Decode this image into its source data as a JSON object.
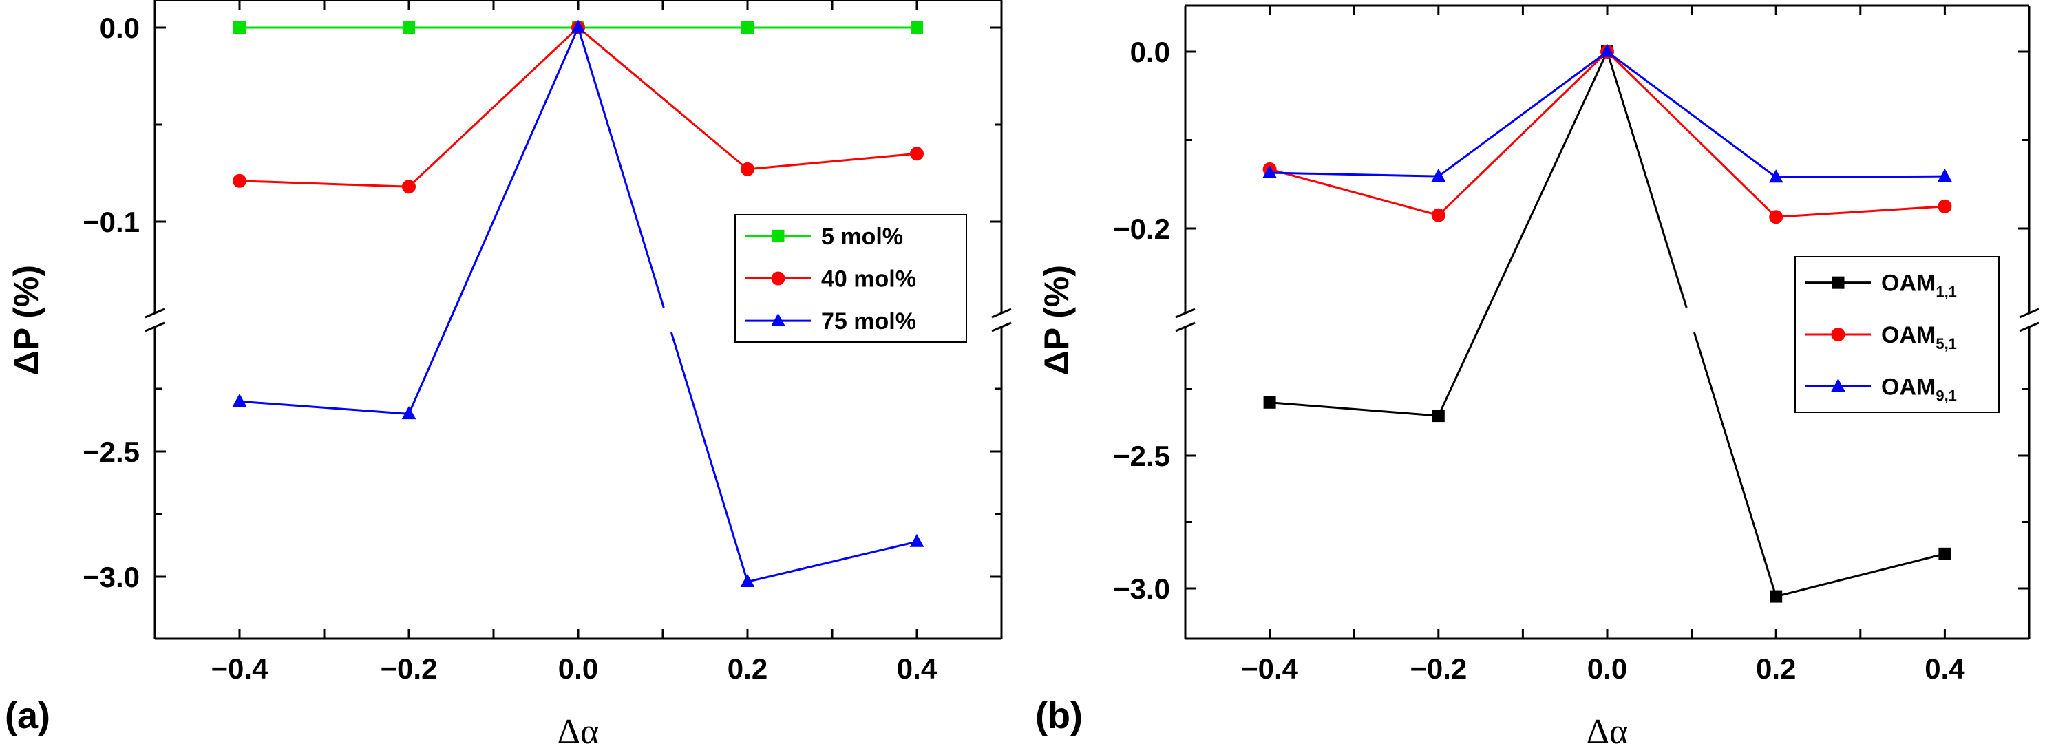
{
  "figure": {
    "panels": [
      "(a)",
      "(b)"
    ],
    "xlabel": "Δα",
    "ylabel": "ΔP (%)"
  },
  "chart_data": [
    {
      "type": "line",
      "panel": "(a)",
      "x": [
        -0.4,
        -0.2,
        0.0,
        0.2,
        0.4
      ],
      "xlim": [
        -0.5,
        0.5
      ],
      "xticks": [
        "−0.4",
        "−0.2",
        "0.0",
        "0.2",
        "0.4"
      ],
      "xlabel": "Δα",
      "ylabel": "ΔP (%)",
      "y_axis_break": true,
      "upper_ylim": [
        -0.135,
        0.0
      ],
      "upper_yticks": [
        "0.0",
        "−0.1"
      ],
      "lower_ylim": [
        -3.3,
        -2.2
      ],
      "lower_yticks": [
        "−2.5",
        "−3.0"
      ],
      "grid": false,
      "legend_position": "right-middle",
      "series": [
        {
          "name": "5 mol%",
          "color": "#00e000",
          "marker": "square",
          "values": [
            0.0,
            0.0,
            0.0,
            0.0,
            0.0
          ]
        },
        {
          "name": "40 mol%",
          "color": "#ff0000",
          "marker": "circle",
          "values": [
            -0.079,
            -0.082,
            0.0,
            -0.073,
            -0.065
          ]
        },
        {
          "name": "75 mol%",
          "color": "#0000ff",
          "marker": "triangle",
          "values": [
            -2.3,
            -2.35,
            0.0,
            -3.02,
            -2.86
          ]
        }
      ]
    },
    {
      "type": "line",
      "panel": "(b)",
      "x": [
        -0.4,
        -0.2,
        0.0,
        0.2,
        0.4
      ],
      "xlim": [
        -0.5,
        0.5
      ],
      "xticks": [
        "−0.4",
        "−0.2",
        "0.0",
        "0.2",
        "0.4"
      ],
      "xlabel": "Δα",
      "ylabel": "ΔP (%)",
      "y_axis_break": true,
      "upper_ylim": [
        -0.3,
        0.05
      ],
      "upper_yticks": [
        "0.0",
        "−0.2"
      ],
      "lower_ylim": [
        -3.3,
        -2.2
      ],
      "lower_yticks": [
        "−2.5",
        "−3.0"
      ],
      "grid": false,
      "legend_position": "right-middle",
      "series": [
        {
          "name": "OAM",
          "subscript": "1,1",
          "color": "#000000",
          "marker": "square",
          "values": [
            -2.3,
            -2.35,
            0.0,
            -3.03,
            -2.87
          ]
        },
        {
          "name": "OAM",
          "subscript": "5,1",
          "color": "#ff0000",
          "marker": "circle",
          "values": [
            -0.133,
            -0.185,
            0.0,
            -0.187,
            -0.175
          ]
        },
        {
          "name": "OAM",
          "subscript": "9,1",
          "color": "#0000ff",
          "marker": "triangle",
          "values": [
            -0.137,
            -0.141,
            0.0,
            -0.142,
            -0.141
          ]
        }
      ]
    }
  ]
}
